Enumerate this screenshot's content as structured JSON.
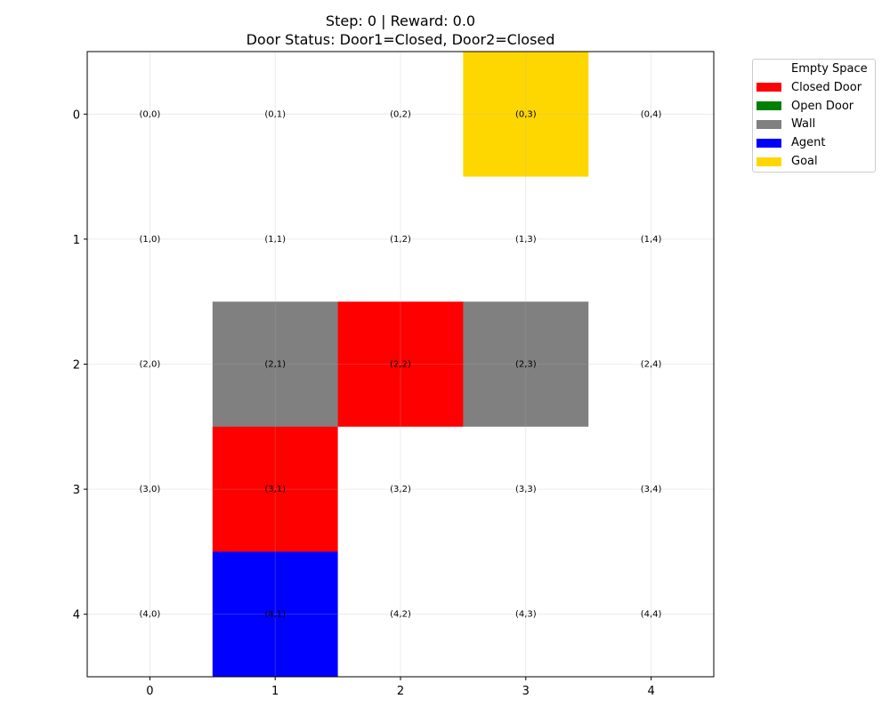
{
  "title": {
    "line1": "Step: 0 | Reward: 0.0",
    "line2": "Door Status: Door1=Closed, Door2=Closed"
  },
  "grid": {
    "rows": 5,
    "cols": 5,
    "cells": [
      [
        "empty",
        "empty",
        "empty",
        "goal",
        "empty"
      ],
      [
        "empty",
        "empty",
        "empty",
        "empty",
        "empty"
      ],
      [
        "empty",
        "wall",
        "closed_door",
        "wall",
        "empty"
      ],
      [
        "empty",
        "closed_door",
        "empty",
        "empty",
        "empty"
      ],
      [
        "empty",
        "agent",
        "empty",
        "empty",
        "empty"
      ]
    ],
    "x_ticks": [
      "0",
      "1",
      "2",
      "3",
      "4"
    ],
    "y_ticks": [
      "0",
      "1",
      "2",
      "3",
      "4"
    ]
  },
  "legend": [
    {
      "key": "empty",
      "label": "Empty Space",
      "color": "#ffffff"
    },
    {
      "key": "closed_door",
      "label": "Closed Door",
      "color": "#ff0000"
    },
    {
      "key": "open_door",
      "label": "Open Door",
      "color": "#008000"
    },
    {
      "key": "wall",
      "label": "Wall",
      "color": "#808080"
    },
    {
      "key": "agent",
      "label": "Agent",
      "color": "#0000ff"
    },
    {
      "key": "goal",
      "label": "Goal",
      "color": "#ffd700"
    }
  ]
}
